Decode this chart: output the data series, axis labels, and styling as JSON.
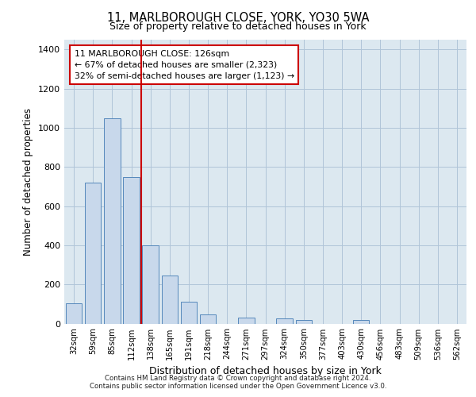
{
  "title_line1": "11, MARLBOROUGH CLOSE, YORK, YO30 5WA",
  "title_line2": "Size of property relative to detached houses in York",
  "xlabel": "Distribution of detached houses by size in York",
  "ylabel": "Number of detached properties",
  "categories": [
    "32sqm",
    "59sqm",
    "85sqm",
    "112sqm",
    "138sqm",
    "165sqm",
    "191sqm",
    "218sqm",
    "244sqm",
    "271sqm",
    "297sqm",
    "324sqm",
    "350sqm",
    "377sqm",
    "403sqm",
    "430sqm",
    "456sqm",
    "483sqm",
    "509sqm",
    "536sqm",
    "562sqm"
  ],
  "values": [
    105,
    720,
    1050,
    750,
    400,
    245,
    110,
    48,
    0,
    30,
    0,
    25,
    20,
    0,
    0,
    18,
    0,
    0,
    0,
    0,
    0
  ],
  "bar_color": "#c8d8eb",
  "bar_edge_color": "#5588bb",
  "vline_x": 3.5,
  "vline_color": "#cc0000",
  "annotation_text": "11 MARLBOROUGH CLOSE: 126sqm\n← 67% of detached houses are smaller (2,323)\n32% of semi-detached houses are larger (1,123) →",
  "annotation_box_color": "#ffffff",
  "annotation_box_edge": "#cc0000",
  "ylim": [
    0,
    1450
  ],
  "yticks": [
    0,
    200,
    400,
    600,
    800,
    1000,
    1200,
    1400
  ],
  "footer_line1": "Contains HM Land Registry data © Crown copyright and database right 2024.",
  "footer_line2": "Contains public sector information licensed under the Open Government Licence v3.0.",
  "plot_bg_color": "#dce8f0"
}
